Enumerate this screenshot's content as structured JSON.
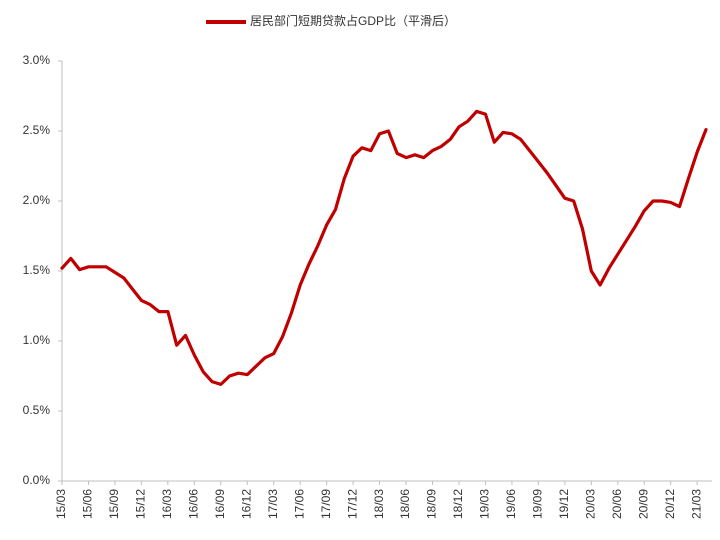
{
  "chart_data": {
    "type": "line",
    "categories": [
      "15/03",
      null,
      null,
      "15/06",
      null,
      null,
      "15/09",
      null,
      null,
      "15/12",
      null,
      null,
      "16/03",
      null,
      null,
      "16/06",
      null,
      null,
      "16/09",
      null,
      null,
      "16/12",
      null,
      null,
      "17/03",
      null,
      null,
      "17/06",
      null,
      null,
      "17/09",
      null,
      null,
      "17/12",
      null,
      null,
      "18/03",
      null,
      null,
      "18/06",
      null,
      null,
      "18/09",
      null,
      null,
      "18/12",
      null,
      null,
      "19/03",
      null,
      null,
      "19/06",
      null,
      null,
      "19/09",
      null,
      null,
      "19/12",
      null,
      null,
      "20/03",
      null,
      null,
      "20/06",
      null,
      null,
      "20/09",
      null,
      null,
      "20/12",
      null,
      null,
      "21/03",
      null
    ],
    "series": [
      {
        "name": "居民部门短期贷款占GDP比（平滑后）",
        "color": "#c00000",
        "values": [
          1.52,
          1.59,
          1.51,
          1.53,
          1.53,
          1.53,
          1.49,
          1.45,
          1.37,
          1.29,
          1.26,
          1.21,
          1.21,
          0.97,
          1.04,
          0.9,
          0.78,
          0.71,
          0.69,
          0.75,
          0.77,
          0.76,
          0.82,
          0.88,
          0.91,
          1.03,
          1.2,
          1.4,
          1.55,
          1.68,
          1.83,
          1.94,
          2.16,
          2.32,
          2.38,
          2.36,
          2.48,
          2.5,
          2.34,
          2.31,
          2.33,
          2.31,
          2.36,
          2.39,
          2.44,
          2.53,
          2.57,
          2.64,
          2.62,
          2.42,
          2.49,
          2.48,
          2.44,
          2.36,
          2.28,
          2.2,
          2.11,
          2.02,
          2.0,
          1.8,
          1.5,
          1.4,
          1.52,
          1.62,
          1.72,
          1.82,
          1.93,
          2.0,
          2.0,
          1.99,
          1.96,
          2.16,
          2.35,
          2.51
        ]
      }
    ],
    "ylim": [
      0,
      3
    ],
    "yticks": [
      {
        "value": 0,
        "label": "0.0%"
      },
      {
        "value": 0.5,
        "label": "0.5%"
      },
      {
        "value": 1,
        "label": "1.0%"
      },
      {
        "value": 1.5,
        "label": "1.5%"
      },
      {
        "value": 2,
        "label": "2.0%"
      },
      {
        "value": 2.5,
        "label": "2.5%"
      },
      {
        "value": 3,
        "label": "3.0%"
      }
    ],
    "grid": false,
    "legend": "top"
  }
}
